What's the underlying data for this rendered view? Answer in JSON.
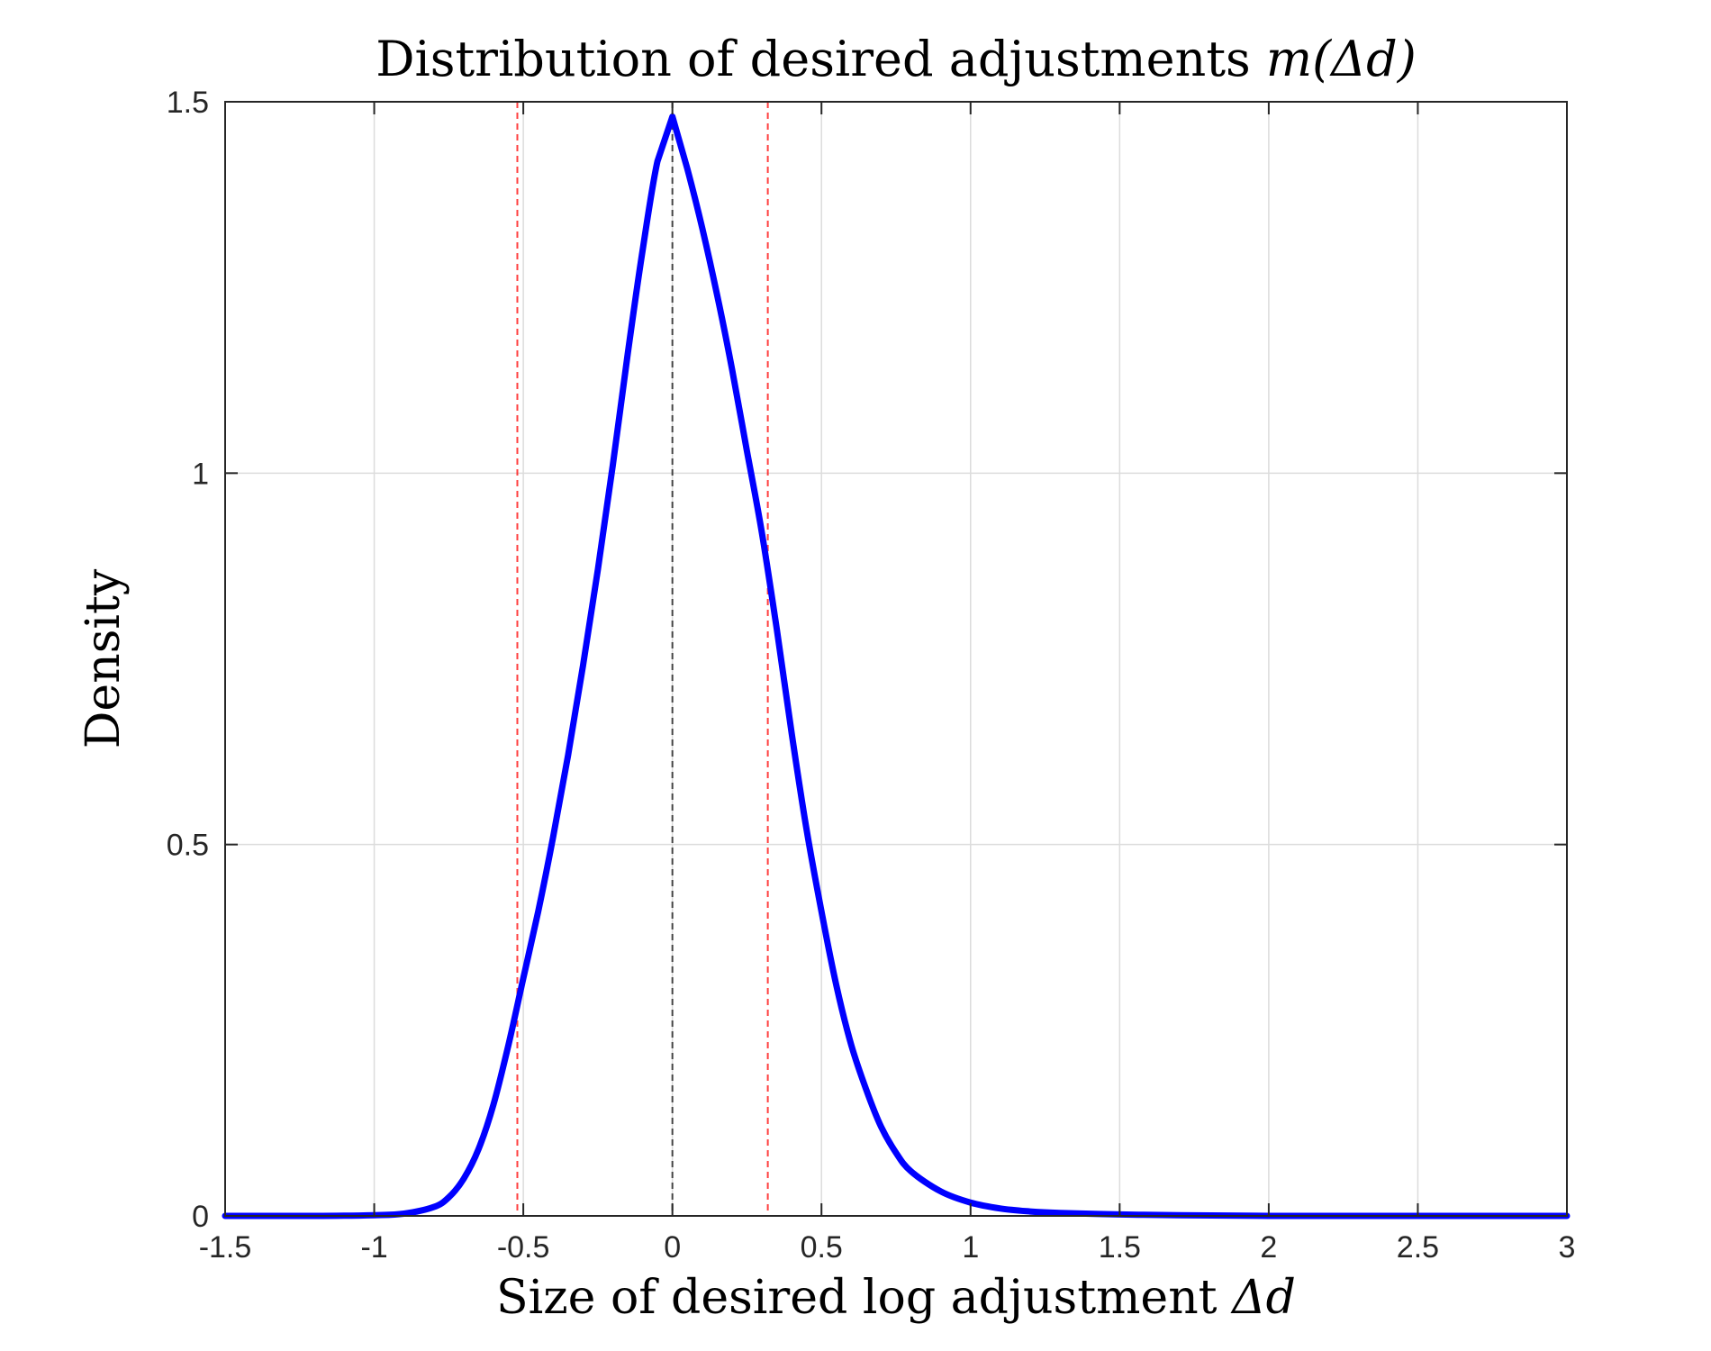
{
  "chart_data": {
    "type": "line",
    "title_main": "Distribution of desired adjustments ",
    "title_math": "m(Δd)",
    "xlabel_main": "Size of desired log adjustment ",
    "xlabel_math": "Δd",
    "ylabel": "Density",
    "xlim": [
      -1.5,
      3
    ],
    "ylim": [
      0,
      1.5
    ],
    "xticks": [
      -1.5,
      -1,
      -0.5,
      0,
      0.5,
      1,
      1.5,
      2,
      2.5,
      3
    ],
    "xtick_labels": [
      "-1.5",
      "-1",
      "-0.5",
      "0",
      "0.5",
      "1",
      "1.5",
      "2",
      "2.5",
      "3"
    ],
    "yticks": [
      0,
      0.5,
      1,
      1.5
    ],
    "ytick_labels": [
      "0",
      "0.5",
      "1",
      "1.5"
    ],
    "grid": true,
    "series": [
      {
        "color": "#0000ff",
        "x": [
          -1.5,
          -1.2,
          -1.0,
          -0.9,
          -0.8,
          -0.75,
          -0.7,
          -0.65,
          -0.6,
          -0.55,
          -0.5,
          -0.45,
          -0.4,
          -0.35,
          -0.3,
          -0.25,
          -0.2,
          -0.15,
          -0.1,
          -0.05,
          0.0,
          0.05,
          0.1,
          0.15,
          0.2,
          0.25,
          0.3,
          0.35,
          0.4,
          0.45,
          0.5,
          0.55,
          0.6,
          0.65,
          0.7,
          0.75,
          0.8,
          0.9,
          1.0,
          1.1,
          1.2,
          1.3,
          1.5,
          1.7,
          2.0,
          2.5,
          3.0
        ],
        "y": [
          0.0,
          0.0,
          0.001,
          0.003,
          0.012,
          0.025,
          0.05,
          0.09,
          0.15,
          0.23,
          0.32,
          0.41,
          0.51,
          0.62,
          0.74,
          0.87,
          1.01,
          1.16,
          1.3,
          1.42,
          1.48,
          1.41,
          1.33,
          1.24,
          1.14,
          1.03,
          0.92,
          0.79,
          0.65,
          0.52,
          0.41,
          0.31,
          0.23,
          0.17,
          0.12,
          0.085,
          0.06,
          0.033,
          0.018,
          0.01,
          0.006,
          0.004,
          0.002,
          0.001,
          0.0,
          0.0,
          0.0
        ]
      }
    ],
    "vlines": [
      {
        "x": -0.52,
        "color": "#ff0000",
        "style": "dashed"
      },
      {
        "x": 0.0,
        "color": "#000000",
        "style": "dashed"
      },
      {
        "x": 0.32,
        "color": "#ff0000",
        "style": "dashed"
      }
    ]
  }
}
